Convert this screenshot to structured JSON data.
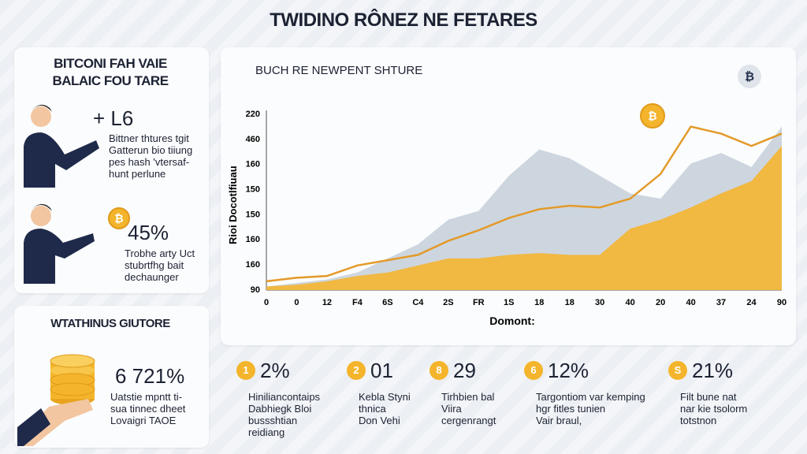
{
  "header": {
    "title": "TWIDINO RÔNEZ NE FETARES"
  },
  "panel_left": {
    "title": [
      "BITCONI FAH VAIE",
      "BALAIC FOU TARE"
    ],
    "items": [
      {
        "value": "+ L6",
        "lines": [
          "Bittner thtures tgit",
          "Gatterun bio tiiung",
          "pes hash 'vtersaf-",
          "hunt perlune"
        ]
      },
      {
        "value": "45%",
        "lines": [
          "Trobhe arty Uct",
          "stubrtfhg bait",
          "dechaunger"
        ]
      }
    ]
  },
  "panel_bottom_left": {
    "title": "WTATHINUS GIUTORE",
    "value": "6 721%",
    "lines": [
      "Uatstie mpntt ti-",
      "sua tinnec dheet",
      "Lovaigri TAOE"
    ]
  },
  "stats": [
    {
      "badge": "1",
      "value": "2%",
      "lines": [
        "Hiniliancontaips",
        "Dabhiegk Bloi",
        "bussshtian",
        "reidiang"
      ]
    },
    {
      "badge": "2",
      "value": "01",
      "lines": [
        "Kebla Styni",
        "thnica",
        "Don Vehi"
      ]
    },
    {
      "badge": "8",
      "value": "29",
      "lines": [
        "Tirhbien bal",
        "Viira",
        "cergenrangt"
      ]
    },
    {
      "badge": "6",
      "value": "12%",
      "lines": [
        "Targontiom var kemping",
        "hgr fitles tunien",
        "Vair braul,"
      ]
    },
    {
      "badge": "S",
      "value": "21%",
      "lines": [
        "Filt bune nat",
        "nar kie tsolorm",
        "totstnon"
      ]
    }
  ],
  "chart_data": {
    "type": "area",
    "title": "BUCH RE NEWPENT SHTURE",
    "y_label": "Rioi Docotlfiuau",
    "x_label": "Domont:",
    "y_labels": [
      "220",
      "460",
      "160",
      "150",
      "150",
      "160",
      "160",
      "90"
    ],
    "categories": [
      "0",
      "0",
      "12",
      "F4",
      "6S",
      "C4",
      "2S",
      "FR",
      "1S",
      "18",
      "18",
      "30",
      "40",
      "20",
      "40",
      "37",
      "24",
      "90"
    ],
    "ylim": [
      0,
      100
    ],
    "series": [
      {
        "type": "area",
        "color": "#c8d2db",
        "values": [
          2,
          4,
          6,
          10,
          18,
          26,
          40,
          45,
          65,
          80,
          75,
          65,
          55,
          52,
          72,
          78,
          70,
          93
        ]
      },
      {
        "type": "area",
        "color": "#f5b531",
        "values": [
          2,
          3,
          5,
          8,
          10,
          14,
          18,
          18,
          20,
          21,
          20,
          20,
          35,
          40,
          47,
          55,
          62,
          82
        ]
      },
      {
        "type": "line",
        "color": "#e39a2a",
        "values": [
          5,
          7,
          8,
          14,
          17,
          20,
          28,
          34,
          41,
          46,
          48,
          47,
          52,
          66,
          93,
          89,
          82,
          89
        ]
      }
    ]
  }
}
